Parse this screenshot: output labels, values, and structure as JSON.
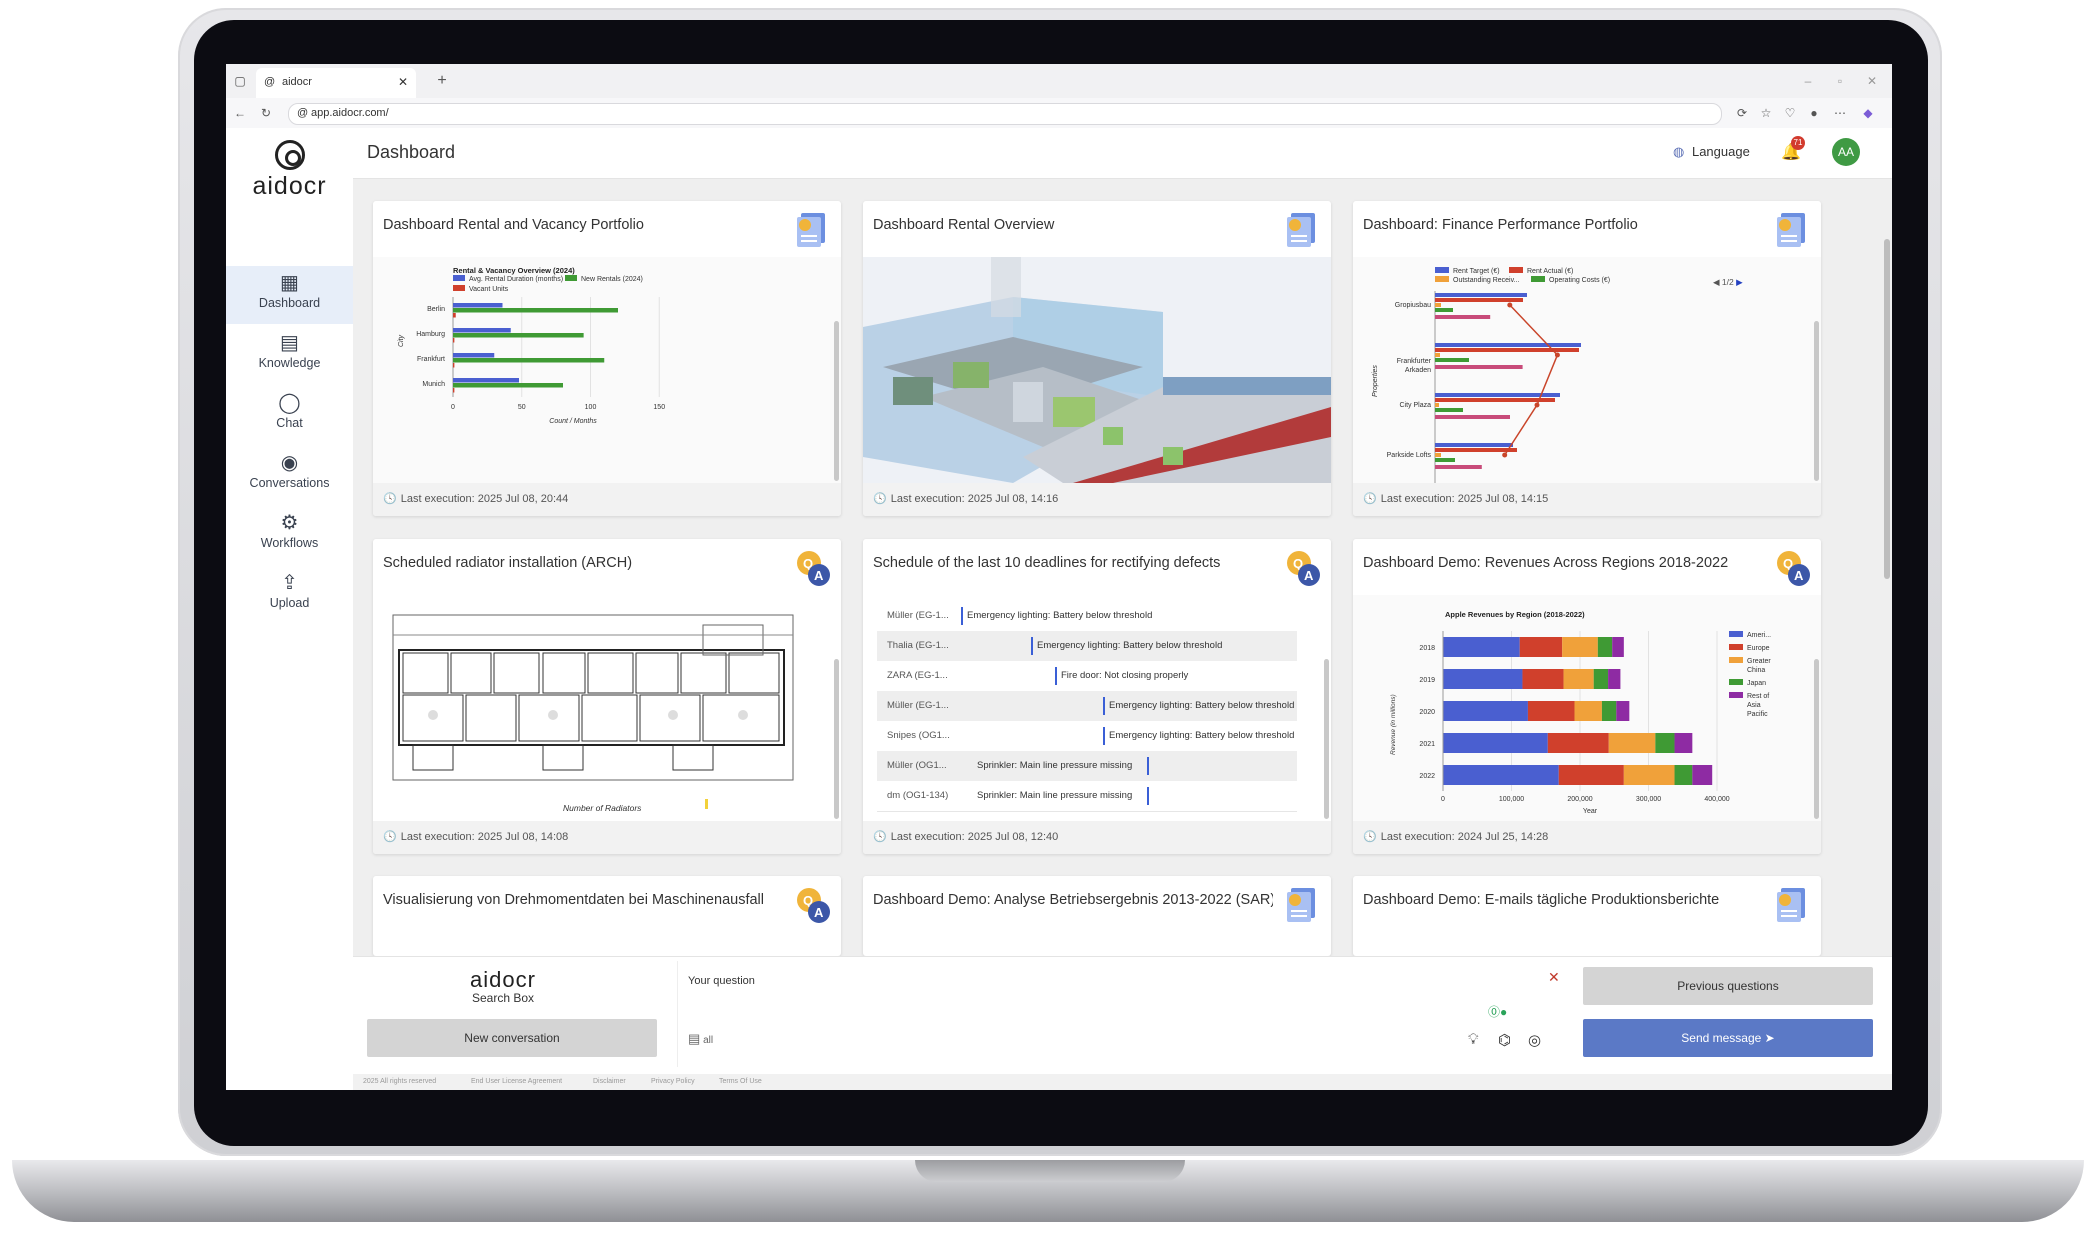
{
  "browser": {
    "tab_title": "aidocr",
    "url": "app.aidocr.com/"
  },
  "brand": {
    "logo_text": "aidocr"
  },
  "sidebar": {
    "items": [
      {
        "label": "Dashboard",
        "icon": "dashboard-icon",
        "active": true
      },
      {
        "label": "Knowledge",
        "icon": "document-icon",
        "active": false
      },
      {
        "label": "Chat",
        "icon": "chat-bubble-icon",
        "active": false
      },
      {
        "label": "Conversations",
        "icon": "conversations-icon",
        "active": false
      },
      {
        "label": "Workflows",
        "icon": "workflow-icon",
        "active": false
      },
      {
        "label": "Upload",
        "icon": "upload-icon",
        "active": false
      }
    ]
  },
  "header": {
    "title": "Dashboard",
    "language_label": "Language",
    "notification_count": "71",
    "avatar_initials": "AA"
  },
  "cards": [
    {
      "title": "Dashboard Rental and Vacancy Portfolio",
      "footer": "Last execution: 2025 Jul 08, 20:44",
      "badge": "document-badge"
    },
    {
      "title": "Dashboard Rental Overview",
      "footer": "Last execution: 2025 Jul 08, 14:16",
      "badge": "document-badge"
    },
    {
      "title": "Dashboard: Finance Performance Portfolio",
      "footer": "Last execution: 2025 Jul 08, 14:15",
      "badge": "document-badge"
    },
    {
      "title": "Scheduled radiator installation (ARCH)",
      "footer": "Last execution: 2025 Jul 08, 14:08",
      "badge": "qa-badge"
    },
    {
      "title": "Schedule of the last 10 deadlines for rectifying defects",
      "footer": "Last execution: 2025 Jul 08, 12:40",
      "badge": "qa-badge"
    },
    {
      "title": "Dashboard Demo: Revenues Across Regions 2018-2022",
      "footer": "Last execution: 2024 Jul 25, 14:28",
      "badge": "qa-badge"
    },
    {
      "title": "Visualisierung von Drehmomentdaten bei Maschinenausfall",
      "badge": "qa-badge"
    },
    {
      "title": "Dashboard Demo: Analyse Betriebsergebnis 2013-2022 (SAR)",
      "badge": "document-badge"
    },
    {
      "title": "Dashboard Demo: E-mails tägliche Produktionsberichte",
      "badge": "document-badge"
    }
  ],
  "floorplan": {
    "xlabel": "Number of Radiators"
  },
  "finance_pager": "1/2",
  "gantt": {
    "rows": [
      {
        "label": "Müller (EG-1...",
        "text": "Emergency lighting: Battery below threshold"
      },
      {
        "label": "Thalia (EG-1...",
        "text": "Emergency lighting: Battery below threshold"
      },
      {
        "label": "ZARA (EG-1...",
        "text": "Fire door: Not closing properly"
      },
      {
        "label": "Müller (EG-1...",
        "text": "Emergency lighting: Battery below threshold"
      },
      {
        "label": "Snipes (OG1...",
        "text": "Emergency lighting: Battery below threshold"
      },
      {
        "label": "Müller (OG1...",
        "text": "Sprinkler: Main line pressure missing"
      },
      {
        "label": "dm (OG1-134)",
        "text": "Sprinkler: Main line pressure missing"
      }
    ]
  },
  "chart_data": [
    {
      "type": "bar",
      "orientation": "horizontal",
      "title": "Rental & Vacancy Overview (2024)",
      "categories": [
        "Berlin",
        "Hamburg",
        "Frankfurt",
        "Munich"
      ],
      "series": [
        {
          "name": "Avg. Rental Duration (months)",
          "color": "#4a5fd0",
          "values": [
            36,
            42,
            30,
            48
          ]
        },
        {
          "name": "New Rentals (2024)",
          "color": "#3f9a34",
          "values": [
            120,
            95,
            110,
            80
          ]
        },
        {
          "name": "Vacant Units",
          "color": "#d0402c",
          "values": [
            2,
            1,
            1,
            1
          ]
        }
      ],
      "xlabel": "Count / Months",
      "ylabel": "City",
      "xticks": [
        "0",
        "50",
        "100",
        "150"
      ],
      "xlim": [
        0,
        160
      ]
    },
    {
      "type": "bar",
      "orientation": "horizontal",
      "categories": [
        "Gropiusbau",
        "Frankfurter Arkaden",
        "City Plaza",
        "Parkside Lofts"
      ],
      "series": [
        {
          "name": "Rent Target (€)",
          "color": "#4a5fd0",
          "values": [
            92,
            146,
            125,
            78
          ]
        },
        {
          "name": "Rent Actual (€)",
          "color": "#d0402c",
          "values": [
            88,
            144,
            120,
            82
          ]
        },
        {
          "name": "Outstanding Receiv...",
          "color": "#f0a13a",
          "values": [
            6,
            5,
            4,
            6
          ]
        },
        {
          "name": "Operating Costs (€)",
          "color": "#3f9a34",
          "values": [
            18,
            34,
            28,
            20
          ]
        }
      ],
      "ylabel": "Properties"
    },
    {
      "type": "bar",
      "orientation": "horizontal",
      "stacked": true,
      "title": "Apple Revenues by Region (2018-2022)",
      "categories": [
        "2018",
        "2019",
        "2020",
        "2021",
        "2022"
      ],
      "series": [
        {
          "name": "Americas",
          "legend_label": "Ameri...",
          "color": "#4a5fd0",
          "values": [
            112000,
            116000,
            124000,
            153000,
            169000
          ]
        },
        {
          "name": "Europe",
          "legend_label": "Europe",
          "color": "#d0402c",
          "values": [
            62000,
            60000,
            68000,
            89000,
            95000
          ]
        },
        {
          "name": "Greater China",
          "legend_label": "Greater China",
          "color": "#f0a13a",
          "values": [
            52000,
            44000,
            40000,
            68000,
            74000
          ]
        },
        {
          "name": "Japan",
          "legend_label": "Japan",
          "color": "#3f9a34",
          "values": [
            21000,
            21000,
            21000,
            28000,
            26000
          ]
        },
        {
          "name": "Rest of Asia Pacific",
          "legend_label": "Rest of Asia Pacific",
          "color": "#8e2ba3",
          "values": [
            17000,
            18000,
            19000,
            26000,
            29000
          ]
        }
      ],
      "xlabel": "Year",
      "ylabel": "Revenue (in millions)",
      "xticks": [
        "0",
        "100,000",
        "200,000",
        "300,000",
        "400,000"
      ],
      "xlim": [
        0,
        400000
      ]
    }
  ],
  "search": {
    "logo_text": "aidocr",
    "subtitle": "Search Box",
    "new_conversation": "New conversation",
    "question_label": "Your question",
    "scope": "all",
    "previous_questions": "Previous questions",
    "send_message": "Send message ➤"
  },
  "footer": {
    "links": [
      "2025 All rights reserved",
      "End User License Agreement",
      "Disclaimer",
      "Privacy Policy",
      "Terms Of Use"
    ]
  }
}
